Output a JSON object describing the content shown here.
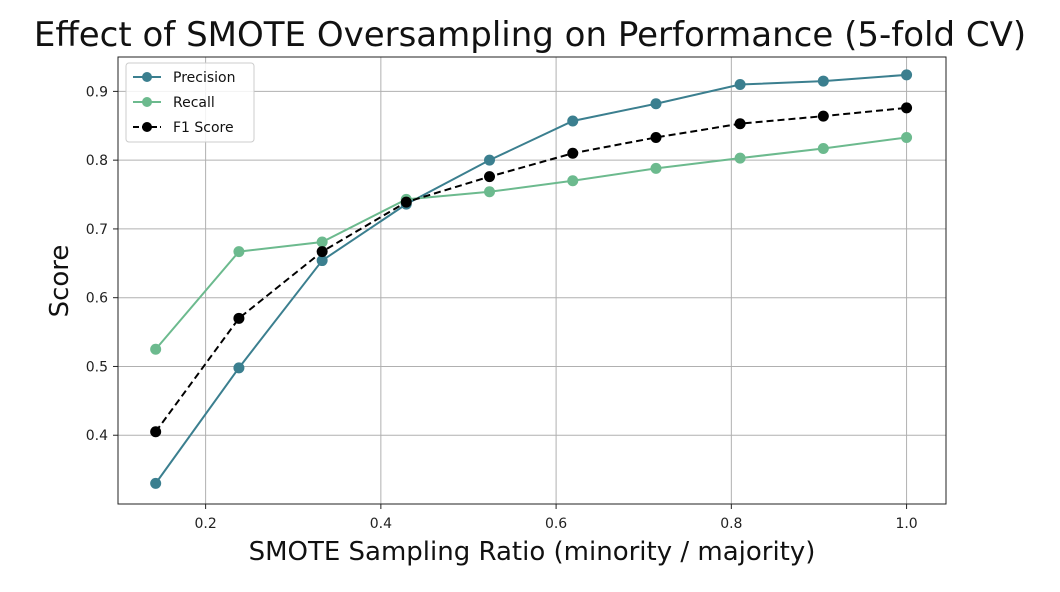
{
  "chart_data": {
    "type": "line",
    "title": "Effect of SMOTE Oversampling on Performance (5-fold CV)",
    "xlabel": "SMOTE Sampling Ratio (minority / majority)",
    "ylabel": "Score",
    "xlim": [
      0.1,
      1.045
    ],
    "ylim": [
      0.3,
      0.95
    ],
    "xticks": [
      0.2,
      0.4,
      0.6,
      0.8,
      1.0
    ],
    "xtick_labels": [
      "0.2",
      "0.4",
      "0.6",
      "0.8",
      "1.0"
    ],
    "yticks": [
      0.4,
      0.5,
      0.6,
      0.7,
      0.8,
      0.9
    ],
    "ytick_labels": [
      "0.4",
      "0.5",
      "0.6",
      "0.7",
      "0.8",
      "0.9"
    ],
    "grid": true,
    "legend_position": "top-left",
    "x": [
      0.143,
      0.238,
      0.333,
      0.429,
      0.524,
      0.619,
      0.714,
      0.81,
      0.905,
      1.0
    ],
    "series": [
      {
        "name": "Precision",
        "color": "#3b7f8f",
        "line_style": "solid",
        "values": [
          0.33,
          0.498,
          0.654,
          0.736,
          0.8,
          0.857,
          0.882,
          0.91,
          0.915,
          0.924
        ]
      },
      {
        "name": "Recall",
        "color": "#6cba8e",
        "line_style": "solid",
        "values": [
          0.525,
          0.667,
          0.681,
          0.743,
          0.754,
          0.77,
          0.788,
          0.803,
          0.817,
          0.833
        ]
      },
      {
        "name": "F1 Score",
        "color": "#000000",
        "line_style": "dashed",
        "values": [
          0.405,
          0.57,
          0.667,
          0.739,
          0.776,
          0.81,
          0.833,
          0.853,
          0.864,
          0.876
        ]
      }
    ]
  }
}
